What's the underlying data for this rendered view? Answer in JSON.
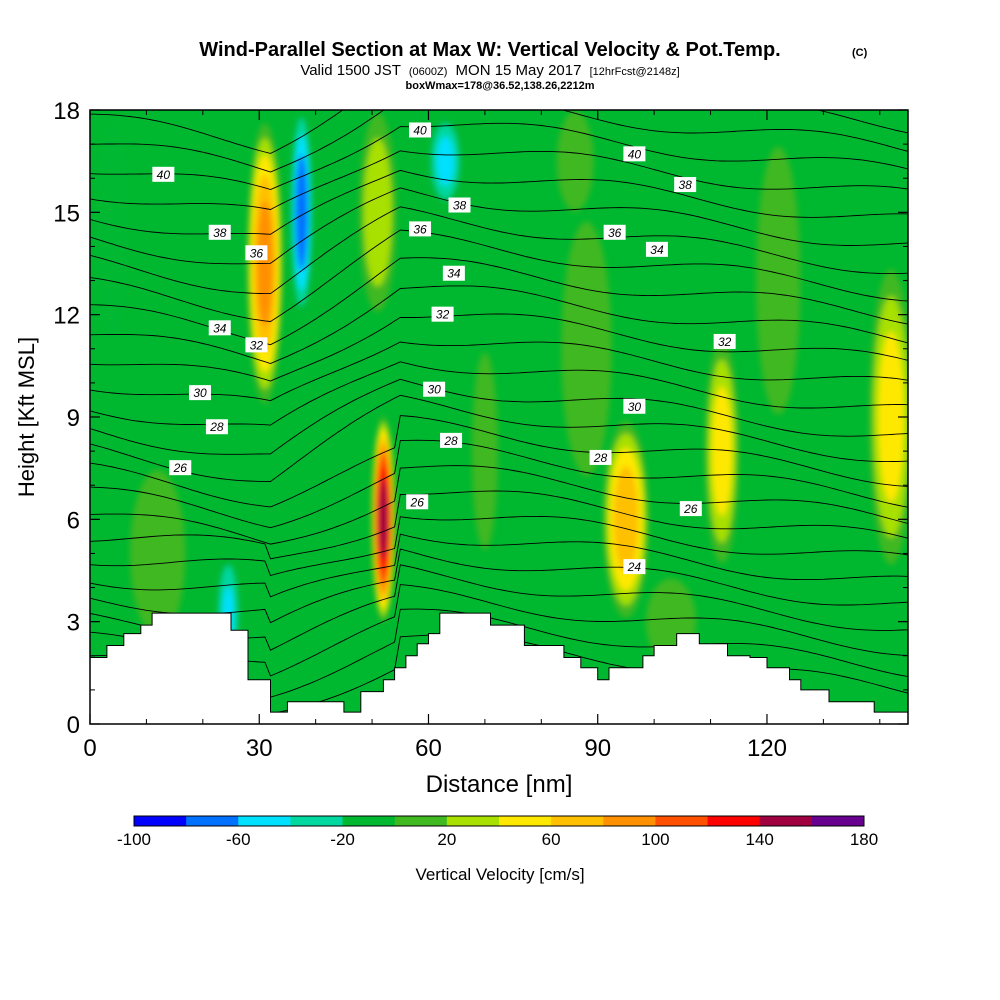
{
  "header": {
    "title": "Wind-Parallel Section at Max W: Vertical Velocity & Pot.Temp.",
    "title_mark": "(C)",
    "valid_prefix": "Valid 1500 JST",
    "valid_utc": "(0600Z)",
    "valid_date": "MON 15 May 2017",
    "forecast_tag": "[12hrFcst@2148z]",
    "box_info": "boxWmax=178@36.52,138.26,2212m"
  },
  "chart_data": {
    "type": "heatmap",
    "title": "Wind-Parallel Section at Max W: Vertical Velocity & Pot.Temp.",
    "xlabel": "Distance [nm]",
    "ylabel": "Height [Kft MSL]",
    "xlim": [
      0,
      145
    ],
    "ylim": [
      0,
      18
    ],
    "x_ticks": [
      0,
      30,
      60,
      90,
      120
    ],
    "y_ticks": [
      0,
      3,
      6,
      9,
      12,
      15,
      18
    ],
    "colorbar": {
      "label": "Vertical Velocity [cm/s]",
      "levels": [
        -100,
        -80,
        -60,
        -40,
        -20,
        0,
        20,
        40,
        60,
        80,
        100,
        120,
        140,
        160,
        180
      ],
      "tick_labels": [
        "-100",
        "-60",
        "-20",
        "20",
        "60",
        "100",
        "140",
        "180"
      ],
      "colors": [
        "#0000ff",
        "#0070ff",
        "#00e0ff",
        "#00d8a0",
        "#00b830",
        "#40b820",
        "#a8e000",
        "#ffe800",
        "#ffc000",
        "#ff9000",
        "#ff5000",
        "#ff0000",
        "#a00040",
        "#680090"
      ]
    },
    "background_color": "#00b830",
    "velocity_features": [
      {
        "x": 31,
        "y": 13.5,
        "rx": 3.5,
        "ry": 4.5,
        "w": 110
      },
      {
        "x": 37.5,
        "y": 15,
        "rx": 2.2,
        "ry": 3.5,
        "w": -95
      },
      {
        "x": 38,
        "y": 11,
        "rx": 1.2,
        "ry": 2,
        "w": -30
      },
      {
        "x": 24.5,
        "y": 3.2,
        "rx": 2.5,
        "ry": 2.2,
        "w": -60
      },
      {
        "x": 4,
        "y": 14.5,
        "rx": 3.5,
        "ry": 4.5,
        "w": -30
      },
      {
        "x": 52,
        "y": 6,
        "rx": 2.2,
        "ry": 3.2,
        "w": 175
      },
      {
        "x": 51,
        "y": 15,
        "rx": 4,
        "ry": 3.5,
        "w": 55
      },
      {
        "x": 63,
        "y": 16.5,
        "rx": 3.5,
        "ry": 1.6,
        "w": -65
      },
      {
        "x": 95,
        "y": 6,
        "rx": 4.5,
        "ry": 3.2,
        "w": 95
      },
      {
        "x": 112,
        "y": 8,
        "rx": 3.5,
        "ry": 3.8,
        "w": 70
      },
      {
        "x": 142,
        "y": 9,
        "rx": 4.5,
        "ry": 5,
        "w": 70
      },
      {
        "x": 88,
        "y": 11,
        "rx": 6,
        "ry": 5,
        "w": 35
      },
      {
        "x": 122,
        "y": 13,
        "rx": 6,
        "ry": 6,
        "w": 25
      },
      {
        "x": 70,
        "y": 8,
        "rx": 4,
        "ry": 5,
        "w": 20
      },
      {
        "x": 103,
        "y": 3,
        "rx": 7,
        "ry": 2,
        "w": 15
      },
      {
        "x": 86,
        "y": 16.5,
        "rx": 4,
        "ry": 1.8,
        "w": 5
      },
      {
        "x": 12,
        "y": 5,
        "rx": 6,
        "ry": 3,
        "w": 5
      }
    ],
    "isentrope_labels": [
      {
        "text": "40",
        "x": 13,
        "y": 16.1
      },
      {
        "text": "38",
        "x": 23,
        "y": 14.4
      },
      {
        "text": "36",
        "x": 29.5,
        "y": 13.8
      },
      {
        "text": "34",
        "x": 23,
        "y": 11.6
      },
      {
        "text": "32",
        "x": 29.5,
        "y": 11.1
      },
      {
        "text": "30",
        "x": 19.5,
        "y": 9.7
      },
      {
        "text": "28",
        "x": 22.5,
        "y": 8.7
      },
      {
        "text": "26",
        "x": 16,
        "y": 7.5
      },
      {
        "text": "40",
        "x": 58.5,
        "y": 17.4
      },
      {
        "text": "38",
        "x": 65.5,
        "y": 15.2
      },
      {
        "text": "36",
        "x": 58.5,
        "y": 14.5
      },
      {
        "text": "34",
        "x": 64.5,
        "y": 13.2
      },
      {
        "text": "32",
        "x": 62.5,
        "y": 12
      },
      {
        "text": "30",
        "x": 61,
        "y": 9.8
      },
      {
        "text": "28",
        "x": 64,
        "y": 8.3
      },
      {
        "text": "26",
        "x": 58,
        "y": 6.5
      },
      {
        "text": "40",
        "x": 96.5,
        "y": 16.7
      },
      {
        "text": "38",
        "x": 105.5,
        "y": 15.8
      },
      {
        "text": "36",
        "x": 93,
        "y": 14.4
      },
      {
        "text": "34",
        "x": 100.5,
        "y": 13.9
      },
      {
        "text": "32",
        "x": 112.5,
        "y": 11.2
      },
      {
        "text": "30",
        "x": 96.5,
        "y": 9.3
      },
      {
        "text": "28",
        "x": 90.5,
        "y": 7.8
      },
      {
        "text": "26",
        "x": 106.5,
        "y": 6.3
      },
      {
        "text": "24",
        "x": 96.5,
        "y": 4.6
      }
    ],
    "terrain_kft": [
      [
        0,
        1.95
      ],
      [
        3,
        1.95
      ],
      [
        3,
        2.3
      ],
      [
        6,
        2.3
      ],
      [
        6,
        2.65
      ],
      [
        9,
        2.65
      ],
      [
        9,
        2.9
      ],
      [
        11,
        2.9
      ],
      [
        11,
        3.25
      ],
      [
        25,
        3.25
      ],
      [
        25,
        2.75
      ],
      [
        28,
        2.75
      ],
      [
        28,
        1.3
      ],
      [
        32,
        1.3
      ],
      [
        32,
        0.35
      ],
      [
        35,
        0.35
      ],
      [
        35,
        0.65
      ],
      [
        45,
        0.65
      ],
      [
        45,
        0.35
      ],
      [
        48,
        0.35
      ],
      [
        48,
        0.95
      ],
      [
        52,
        0.95
      ],
      [
        52,
        1.3
      ],
      [
        54,
        1.3
      ],
      [
        54,
        1.65
      ],
      [
        56,
        1.65
      ],
      [
        56,
        2.0
      ],
      [
        58,
        2.0
      ],
      [
        58,
        2.35
      ],
      [
        60,
        2.35
      ],
      [
        60,
        2.65
      ],
      [
        62,
        2.65
      ],
      [
        62,
        3.25
      ],
      [
        71,
        3.25
      ],
      [
        71,
        2.9
      ],
      [
        77,
        2.9
      ],
      [
        77,
        2.3
      ],
      [
        84,
        2.3
      ],
      [
        84,
        1.95
      ],
      [
        87,
        1.95
      ],
      [
        87,
        1.65
      ],
      [
        90,
        1.65
      ],
      [
        90,
        1.3
      ],
      [
        92,
        1.3
      ],
      [
        92,
        1.65
      ],
      [
        98,
        1.65
      ],
      [
        98,
        2.0
      ],
      [
        100,
        2.0
      ],
      [
        100,
        2.3
      ],
      [
        104,
        2.3
      ],
      [
        104,
        2.65
      ],
      [
        108,
        2.65
      ],
      [
        108,
        2.35
      ],
      [
        113,
        2.35
      ],
      [
        113,
        2.0
      ],
      [
        117,
        2.0
      ],
      [
        117,
        1.95
      ],
      [
        120,
        1.95
      ],
      [
        120,
        1.65
      ],
      [
        124,
        1.65
      ],
      [
        124,
        1.3
      ],
      [
        126,
        1.3
      ],
      [
        126,
        1.0
      ],
      [
        131,
        1.0
      ],
      [
        131,
        0.65
      ],
      [
        139,
        0.65
      ],
      [
        139,
        0.35
      ],
      [
        145,
        0.35
      ]
    ]
  }
}
